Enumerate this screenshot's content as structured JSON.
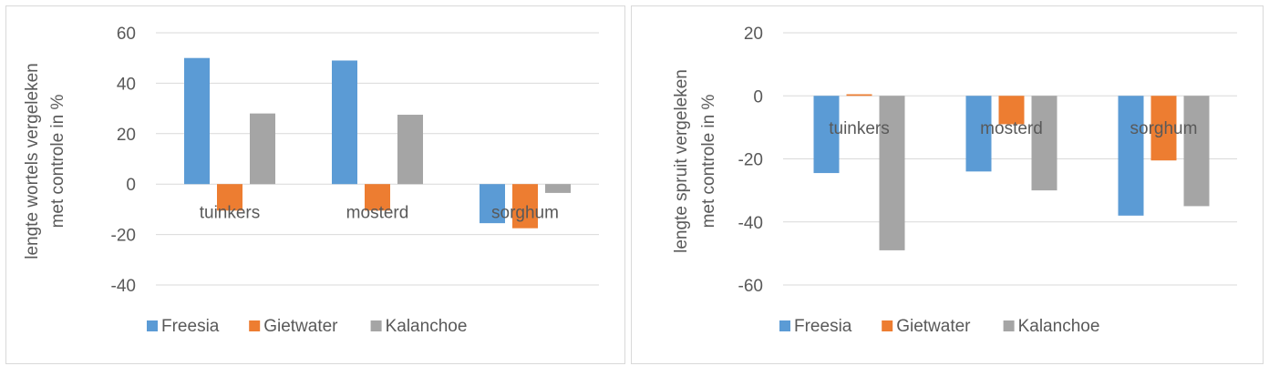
{
  "colors": {
    "Freesia": "#5b9bd5",
    "Gietwater": "#ed7d31",
    "Kalanchoe": "#a5a5a5",
    "grid": "#d9d9d9",
    "text": "#595959"
  },
  "chart_data": [
    {
      "type": "bar",
      "categories": [
        "tuinkers",
        "mosterd",
        "sorghum"
      ],
      "series": [
        {
          "name": "Freesia",
          "values": [
            50,
            49,
            -15.5
          ]
        },
        {
          "name": "Gietwater",
          "values": [
            -10.5,
            -10.5,
            -17.5
          ]
        },
        {
          "name": "Kalanchoe",
          "values": [
            28,
            27.5,
            -3.5
          ]
        }
      ],
      "ylabel": [
        "lengte wortels vergeleken",
        "met  controle in %"
      ],
      "ylim": [
        -40,
        60
      ],
      "yticks": [
        60,
        40,
        20,
        0,
        -20,
        -40
      ],
      "grid": true,
      "legend": "bottom"
    },
    {
      "type": "bar",
      "categories": [
        "tuinkers",
        "mosterd",
        "sorghum"
      ],
      "series": [
        {
          "name": "Freesia",
          "values": [
            -24.5,
            -24,
            -38
          ]
        },
        {
          "name": "Gietwater",
          "values": [
            0.5,
            -9,
            -20.5
          ]
        },
        {
          "name": "Kalanchoe",
          "values": [
            -49,
            -30,
            -35
          ]
        }
      ],
      "ylabel": [
        "lengte spruit  vergeleken",
        "met controle in %"
      ],
      "ylim": [
        -60,
        20
      ],
      "yticks": [
        20,
        0,
        -20,
        -40,
        -60
      ],
      "grid": true,
      "legend": "bottom"
    }
  ]
}
